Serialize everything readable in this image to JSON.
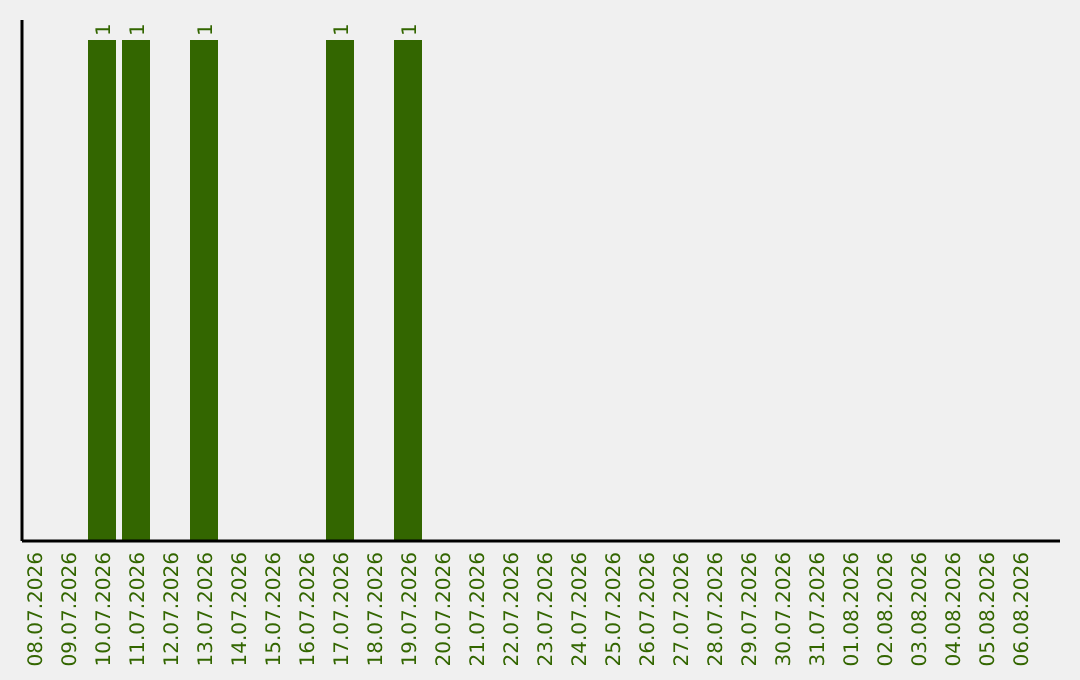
{
  "chart_data": {
    "type": "bar",
    "categories": [
      "08.07.2026",
      "09.07.2026",
      "10.07.2026",
      "11.07.2026",
      "12.07.2026",
      "13.07.2026",
      "14.07.2026",
      "15.07.2026",
      "16.07.2026",
      "17.07.2026",
      "18.07.2026",
      "19.07.2026",
      "20.07.2026",
      "21.07.2026",
      "22.07.2026",
      "23.07.2026",
      "24.07.2026",
      "25.07.2026",
      "26.07.2026",
      "27.07.2026",
      "28.07.2026",
      "29.07.2026",
      "30.07.2026",
      "31.07.2026",
      "01.08.2026",
      "02.08.2026",
      "03.08.2026",
      "04.08.2026",
      "05.08.2026",
      "06.08.2026"
    ],
    "values": [
      0,
      0,
      1,
      1,
      0,
      1,
      0,
      0,
      0,
      1,
      0,
      1,
      0,
      0,
      0,
      0,
      0,
      0,
      0,
      0,
      0,
      0,
      0,
      0,
      0,
      0,
      0,
      0,
      0,
      0
    ],
    "value_labels": [
      null,
      null,
      "1",
      "1",
      null,
      "1",
      null,
      null,
      null,
      "1",
      null,
      "1",
      null,
      null,
      null,
      null,
      null,
      null,
      null,
      null,
      null,
      null,
      null,
      null,
      null,
      null,
      null,
      null,
      null,
      null
    ],
    "color": "#336600",
    "tick_labels": "x"
  }
}
